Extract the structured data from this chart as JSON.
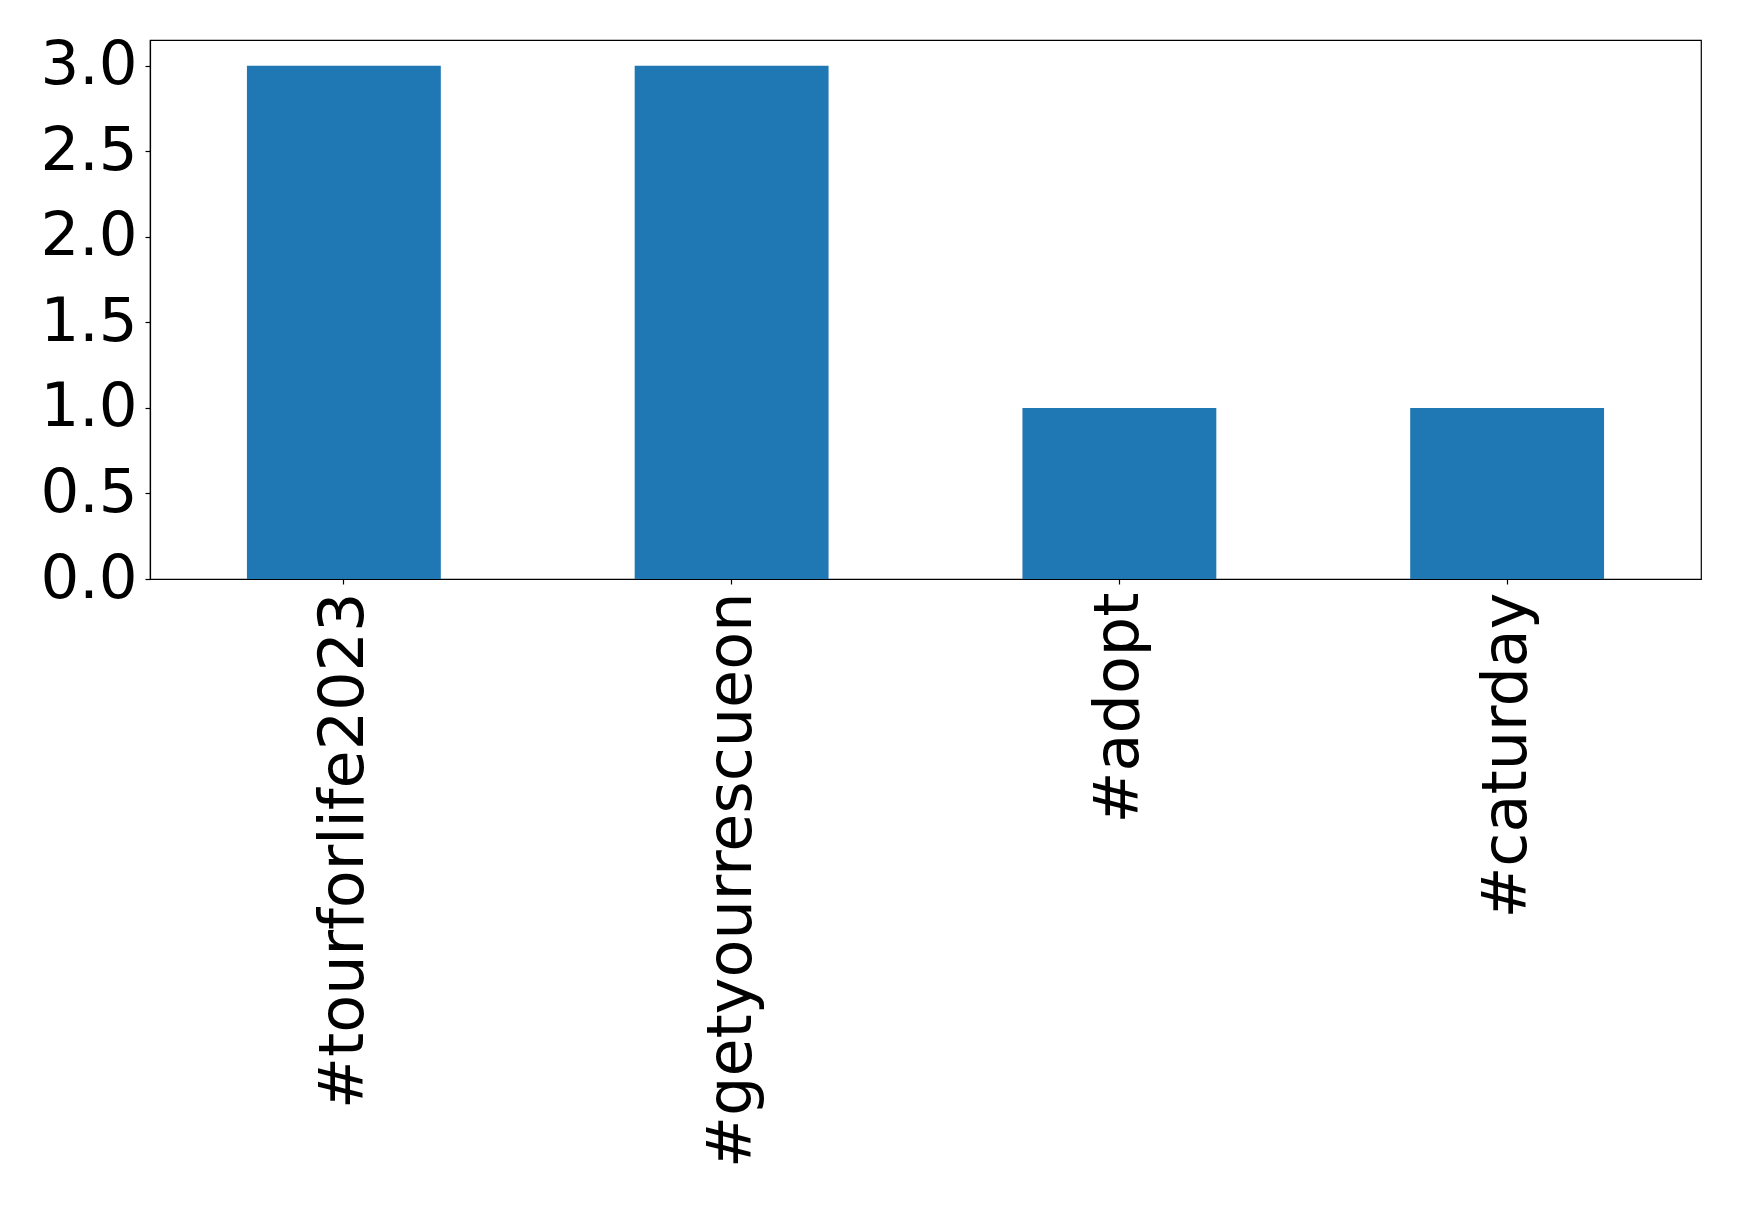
{
  "chart_data": {
    "type": "bar",
    "categories": [
      "#tourforlife2023",
      "#getyourrescueon",
      "#adopt",
      "#caturday"
    ],
    "values": [
      3,
      3,
      1,
      1
    ],
    "color": "#1f77b4",
    "ylim": [
      0,
      3.15
    ],
    "yticks": [
      {
        "value": 0,
        "label": "0.0"
      },
      0.5,
      {
        "value": 1,
        "label": "1.0"
      },
      1.5,
      {
        "value": 2,
        "label": "2.0"
      },
      2.5,
      {
        "value": 3,
        "label": "3.0"
      }
    ],
    "grid": false
  }
}
